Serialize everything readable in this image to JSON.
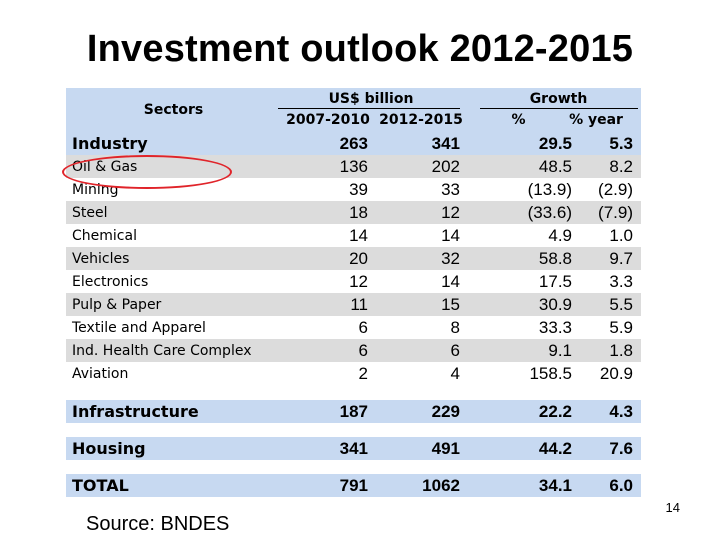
{
  "title": "Investment outlook 2012-2015",
  "header": {
    "sectors": "Sectors",
    "usd_group": "US$ billion",
    "usd_col1": "2007-2010",
    "usd_col2": "2012-2015",
    "growth_group": "Growth",
    "growth_col1": "%",
    "growth_col2": "% year"
  },
  "rows": [
    {
      "sector": "Industry",
      "v1": "263",
      "v2": "341",
      "g1": "29.5",
      "g2": "5.3"
    },
    {
      "sector": "Oil & Gas",
      "v1": "136",
      "v2": "202",
      "g1": "48.5",
      "g2": "8.2"
    },
    {
      "sector": "Mining",
      "v1": "39",
      "v2": "33",
      "g1": "(13.9)",
      "g2": "(2.9)"
    },
    {
      "sector": "Steel",
      "v1": "18",
      "v2": "12",
      "g1": "(33.6)",
      "g2": "(7.9)"
    },
    {
      "sector": "Chemical",
      "v1": "14",
      "v2": "14",
      "g1": "4.9",
      "g2": "1.0"
    },
    {
      "sector": "Vehicles",
      "v1": "20",
      "v2": "32",
      "g1": "58.8",
      "g2": "9.7"
    },
    {
      "sector": "Electronics",
      "v1": "12",
      "v2": "14",
      "g1": "17.5",
      "g2": "3.3"
    },
    {
      "sector": "Pulp & Paper",
      "v1": "11",
      "v2": "15",
      "g1": "30.9",
      "g2": "5.5"
    },
    {
      "sector": "Textile and Apparel",
      "v1": "6",
      "v2": "8",
      "g1": "33.3",
      "g2": "5.9"
    },
    {
      "sector": "Ind. Health Care Complex",
      "v1": "6",
      "v2": "6",
      "g1": "9.1",
      "g2": "1.8"
    },
    {
      "sector": "Aviation",
      "v1": "2",
      "v2": "4",
      "g1": "158.5",
      "g2": "20.9"
    },
    {
      "sector": "Infrastructure",
      "v1": "187",
      "v2": "229",
      "g1": "22.2",
      "g2": "4.3"
    },
    {
      "sector": "Housing",
      "v1": "341",
      "v2": "491",
      "g1": "44.2",
      "g2": "7.6"
    },
    {
      "sector": "TOTAL",
      "v1": "791",
      "v2": "1062",
      "g1": "34.1",
      "g2": "6.0"
    }
  ],
  "highlight_color": "#e0242a",
  "source": "Source: BNDES",
  "page_number": "14"
}
